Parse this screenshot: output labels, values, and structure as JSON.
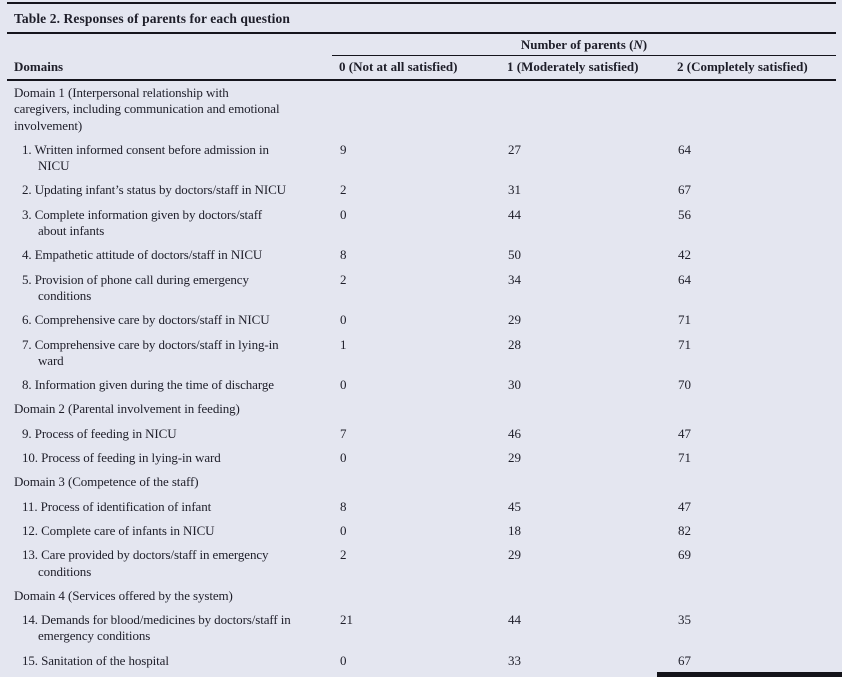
{
  "table": {
    "title": "Table 2. Responses of parents for each question",
    "domains_header": "Domains",
    "group_header": {
      "prefix": "Number of parents (",
      "n": "N",
      "suffix": ")"
    },
    "columns": [
      "0 (Not at all satisfied)",
      "1 (Moderately satisfied)",
      "2 (Completely satisfied)"
    ],
    "rows": [
      {
        "type": "domain",
        "label": "Domain 1 (Interpersonal relationship with\ncaregivers, including communication and emotional\ninvolvement)"
      },
      {
        "type": "item",
        "label": "1. Written informed consent before admission in\nNICU",
        "values": [
          "9",
          "27",
          "64"
        ]
      },
      {
        "type": "item",
        "label": "2. Updating infant’s status by doctors/staff in NICU",
        "values": [
          "2",
          "31",
          "67"
        ]
      },
      {
        "type": "item",
        "label": "3. Complete information given by doctors/staff\nabout infants",
        "values": [
          "0",
          "44",
          "56"
        ]
      },
      {
        "type": "item",
        "label": "4. Empathetic attitude of doctors/staff in NICU",
        "values": [
          "8",
          "50",
          "42"
        ]
      },
      {
        "type": "item",
        "label": "5. Provision of phone call during emergency\nconditions",
        "values": [
          "2",
          "34",
          "64"
        ]
      },
      {
        "type": "item",
        "label": "6. Comprehensive care by doctors/staff in NICU",
        "values": [
          "0",
          "29",
          "71"
        ]
      },
      {
        "type": "item",
        "label": "7. Comprehensive care by doctors/staff in lying-in\nward",
        "values": [
          "1",
          "28",
          "71"
        ]
      },
      {
        "type": "item",
        "label": "8. Information given during the time of discharge",
        "values": [
          "0",
          "30",
          "70"
        ]
      },
      {
        "type": "domain",
        "label": "Domain 2 (Parental involvement in feeding)"
      },
      {
        "type": "item",
        "label": "9. Process of feeding in NICU",
        "values": [
          "7",
          "46",
          "47"
        ]
      },
      {
        "type": "item",
        "label": "10. Process of feeding in lying-in ward",
        "values": [
          "0",
          "29",
          "71"
        ]
      },
      {
        "type": "domain",
        "label": "Domain 3 (Competence of the staff)"
      },
      {
        "type": "item",
        "label": "11. Process of identification of infant",
        "values": [
          "8",
          "45",
          "47"
        ]
      },
      {
        "type": "item",
        "label": "12. Complete care of infants in NICU",
        "values": [
          "0",
          "18",
          "82"
        ]
      },
      {
        "type": "item",
        "label": "13. Care provided by doctors/staff in emergency\nconditions",
        "values": [
          "2",
          "29",
          "69"
        ]
      },
      {
        "type": "domain",
        "label": "Domain 4 (Services offered by the system)"
      },
      {
        "type": "item",
        "label": "14. Demands for blood/medicines by doctors/staff in\nemergency conditions",
        "values": [
          "21",
          "44",
          "35"
        ]
      },
      {
        "type": "item",
        "label": "15. Sanitation of the hospital",
        "values": [
          "0",
          "33",
          "67"
        ]
      }
    ]
  }
}
